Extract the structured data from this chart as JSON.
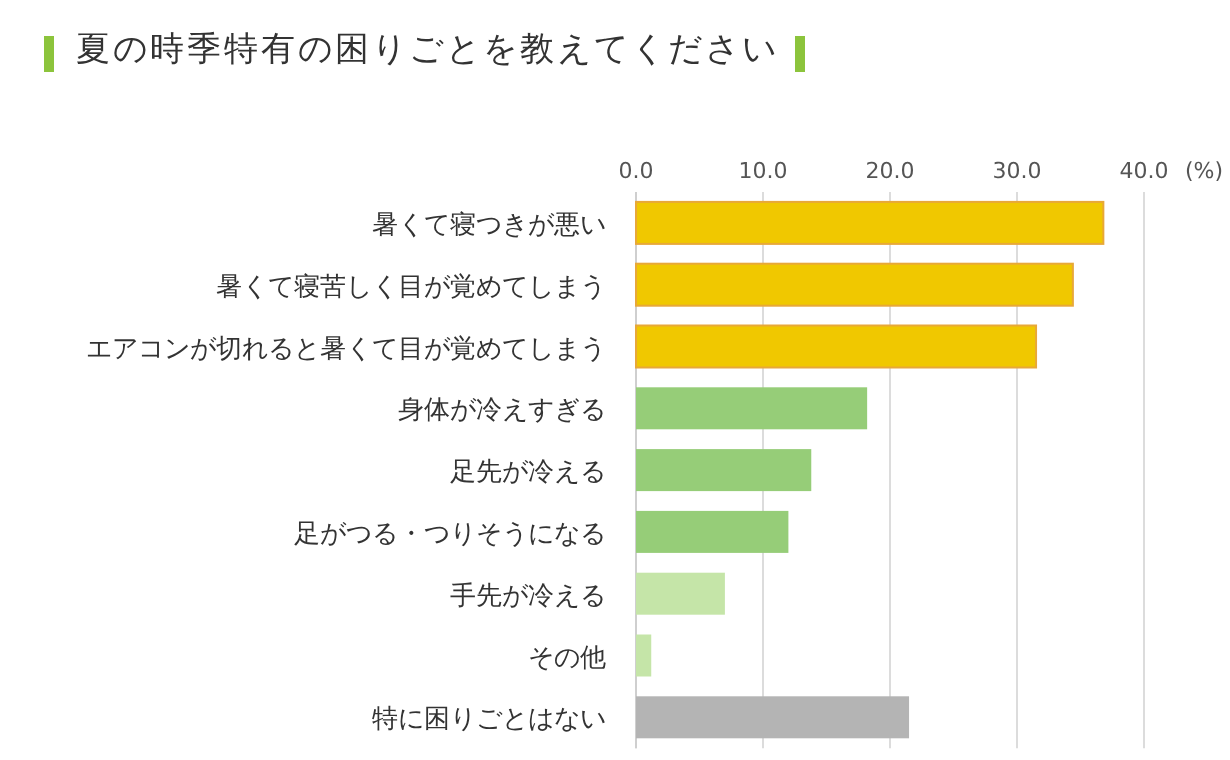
{
  "chart_data": {
    "type": "bar",
    "orientation": "horizontal",
    "title": "夏の時季特有の困りごとを教えてください",
    "xlabel": "(%)",
    "categories": [
      "暑くて寝つきが悪い",
      "暑くて寝苦しく目が覚めてしまう",
      "エアコンが切れると暑くて目が覚めてしまう",
      "身体が冷えすぎる",
      "足先が冷える",
      "足がつる・つりそうになる",
      "手先が冷える",
      "その他",
      "特に困りごとはない"
    ],
    "values": [
      36.8,
      34.4,
      31.5,
      18.2,
      13.8,
      12.0,
      7.0,
      1.2,
      21.5
    ],
    "colors": [
      "#f0c800",
      "#f0c800",
      "#f0c800",
      "#96cd78",
      "#96cd78",
      "#96cd78",
      "#c5e5a8",
      "#c5e5a8",
      "#b4b4b4"
    ],
    "xlim": [
      0,
      40
    ],
    "xticks": [
      {
        "value": 0,
        "label": "0.0"
      },
      {
        "value": 10,
        "label": "10.0"
      },
      {
        "value": 20,
        "label": "20.0"
      },
      {
        "value": 30,
        "label": "30.0"
      },
      {
        "value": 40,
        "label": "40.0"
      }
    ],
    "grid": "x"
  }
}
